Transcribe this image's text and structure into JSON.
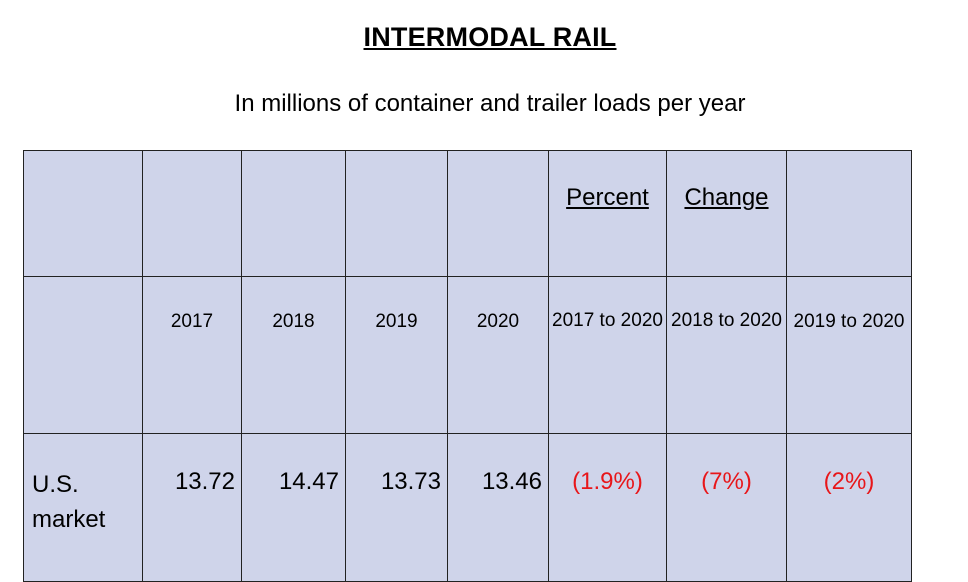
{
  "title": "INTERMODAL RAIL",
  "subtitle": "In millions of container and trailer loads per year",
  "table": {
    "header_row": [
      "",
      "",
      "",
      "",
      "",
      "Percent",
      "Change",
      ""
    ],
    "year_row": [
      "",
      "2017",
      "2018",
      "2019",
      "2020",
      "2017 to 2020",
      "2018 to 2020",
      "2019 to 2020"
    ],
    "rows": [
      {
        "label": "U.S. market",
        "values": [
          "13.72",
          "14.47",
          "13.73",
          "13.46"
        ],
        "percent_changes": [
          "(1.9%)",
          "(7%)",
          "(2%)"
        ]
      }
    ]
  },
  "colors": {
    "cell_background": "#cfd4ea",
    "negative_text": "#e8161a",
    "border": "#222222"
  }
}
